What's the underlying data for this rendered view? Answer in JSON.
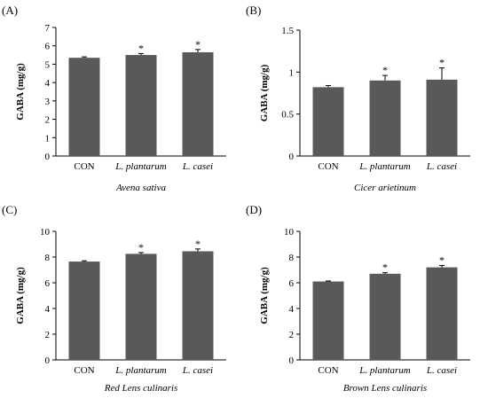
{
  "chart_data": [
    {
      "type": "bar",
      "panel_label": "(A)",
      "categories": [
        "CON",
        "L. plantarum",
        "L. casei"
      ],
      "values": [
        5.35,
        5.5,
        5.65
      ],
      "errors": [
        0.05,
        0.08,
        0.15
      ],
      "significance": [
        "",
        "*",
        "*"
      ],
      "ylabel": "GABA (mg/g)",
      "xlabel": "Avena sativa",
      "ylim": [
        0,
        7
      ],
      "yticks": [
        0,
        1,
        2,
        3,
        4,
        5,
        6,
        7
      ],
      "ytick_labels": [
        "0",
        "1",
        "2",
        "3",
        "4",
        "5",
        "6",
        "7"
      ],
      "bar_color": "#595959"
    },
    {
      "type": "bar",
      "panel_label": "(B)",
      "categories": [
        "CON",
        "L. plantarum",
        "L. casei"
      ],
      "values": [
        0.82,
        0.9,
        0.91
      ],
      "errors": [
        0.02,
        0.06,
        0.14
      ],
      "significance": [
        "",
        "*",
        "*"
      ],
      "ylabel": "GABA (mg/g)",
      "xlabel": "Cicer arietinum",
      "ylim": [
        0,
        1.5
      ],
      "yticks": [
        0,
        0.5,
        1,
        1.5
      ],
      "ytick_labels": [
        "0",
        "0.5",
        "1",
        "1.5"
      ],
      "bar_color": "#595959"
    },
    {
      "type": "bar",
      "panel_label": "(C)",
      "categories": [
        "CON",
        "L. plantarum",
        "L. casei"
      ],
      "values": [
        7.65,
        8.25,
        8.45
      ],
      "errors": [
        0.06,
        0.1,
        0.18
      ],
      "significance": [
        "",
        "*",
        "*"
      ],
      "ylabel": "GABA (mg/g)",
      "xlabel": "Red Lens culinaris",
      "ylim": [
        0,
        10
      ],
      "yticks": [
        0,
        2,
        4,
        6,
        8,
        10
      ],
      "ytick_labels": [
        "0",
        "2",
        "4",
        "6",
        "8",
        "10"
      ],
      "bar_color": "#595959"
    },
    {
      "type": "bar",
      "panel_label": "(D)",
      "categories": [
        "CON",
        "L. plantarum",
        "L. casei"
      ],
      "values": [
        6.1,
        6.7,
        7.2
      ],
      "errors": [
        0.04,
        0.08,
        0.15
      ],
      "significance": [
        "",
        "*",
        "*"
      ],
      "ylabel": "GABA (mg/g)",
      "xlabel": "Brown Lens culinaris",
      "ylim": [
        0,
        10
      ],
      "yticks": [
        0,
        2,
        4,
        6,
        8,
        10
      ],
      "ytick_labels": [
        "0",
        "2",
        "4",
        "6",
        "8",
        "10"
      ],
      "bar_color": "#595959"
    }
  ]
}
